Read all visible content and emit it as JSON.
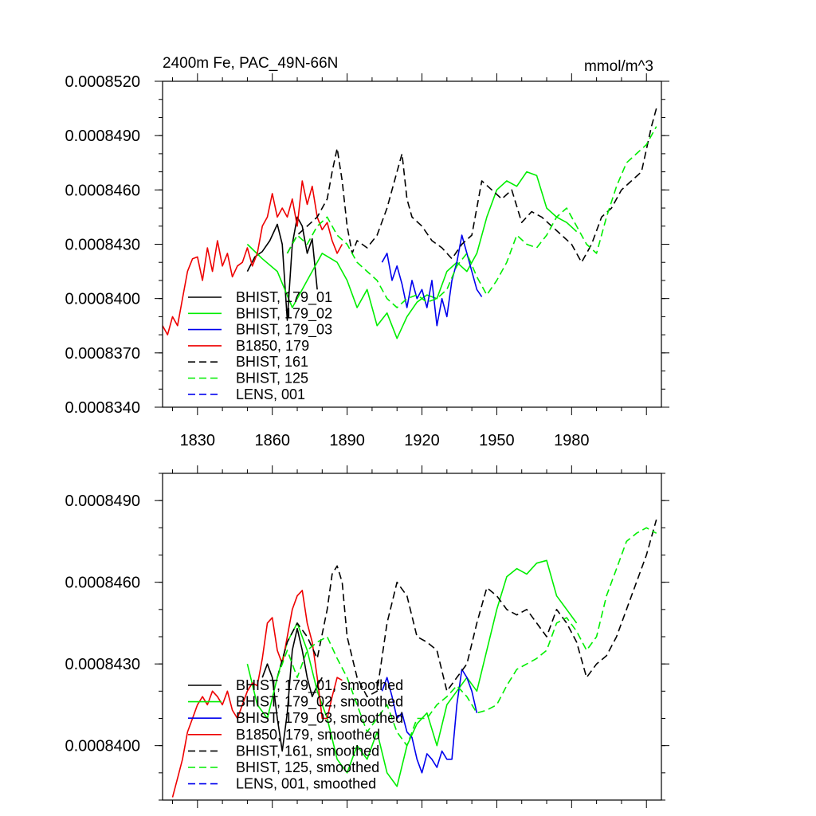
{
  "chart_data": [
    {
      "type": "line",
      "title": "2400m Fe, PAC_49N-66N",
      "units": "mmol/m^3",
      "xlabel": "",
      "ylabel": "",
      "xlim": [
        1816,
        2016
      ],
      "ylim": [
        0.000834,
        0.000852
      ],
      "xticks": [
        1830,
        1860,
        1890,
        1920,
        1950,
        1980
      ],
      "xtick_labels": [
        "1830",
        "1860",
        "1890",
        "1920",
        "1950",
        "1980"
      ],
      "yticks": [
        0.000834,
        0.000837,
        0.00084,
        0.000843,
        0.000846,
        0.000849,
        0.000852
      ],
      "ytick_labels": [
        "0.0008340",
        "0.0008370",
        "0.0008400",
        "0.0008430",
        "0.0008460",
        "0.0008490",
        "0.0008520"
      ],
      "legend_position": "lower-left",
      "series": [
        {
          "name": "BHIST, 179_01",
          "color": "#000000",
          "dash": "solid",
          "x": [
            1850,
            1853,
            1856,
            1859,
            1862,
            1864,
            1866,
            1868,
            1870,
            1872,
            1874,
            1876,
            1878
          ],
          "y": [
            0.0008415,
            0.0008423,
            0.0008426,
            0.0008432,
            0.0008441,
            0.000843,
            0.0008388,
            0.000843,
            0.0008445,
            0.000844,
            0.0008425,
            0.0008433,
            0.0008405
          ]
        },
        {
          "name": "BHIST, 179_02",
          "color": "#00ee00",
          "dash": "solid",
          "x": [
            1850,
            1856,
            1862,
            1868,
            1874,
            1880,
            1886,
            1890,
            1894,
            1898,
            1902,
            1906,
            1910,
            1914,
            1918,
            1922,
            1926,
            1930,
            1934,
            1938,
            1942,
            1946,
            1950,
            1954,
            1958,
            1962,
            1966,
            1970,
            1974,
            1978,
            1982
          ],
          "y": [
            0.000843,
            0.0008422,
            0.0008415,
            0.0008395,
            0.000841,
            0.0008425,
            0.000842,
            0.000841,
            0.0008395,
            0.0008405,
            0.0008385,
            0.0008392,
            0.0008378,
            0.000839,
            0.0008398,
            0.0008402,
            0.00084,
            0.0008415,
            0.000842,
            0.0008415,
            0.0008425,
            0.0008445,
            0.000846,
            0.0008465,
            0.0008462,
            0.000847,
            0.0008468,
            0.000845,
            0.0008445,
            0.0008442,
            0.0008437
          ]
        },
        {
          "name": "BHIST, 179_03",
          "color": "#0000ee",
          "dash": "solid",
          "x": [
            1904,
            1906,
            1908,
            1910,
            1912,
            1914,
            1916,
            1918,
            1920,
            1922,
            1924,
            1926,
            1928,
            1930,
            1932,
            1934,
            1936,
            1938,
            1940,
            1942,
            1944
          ],
          "y": [
            0.000842,
            0.0008425,
            0.000841,
            0.0008418,
            0.0008408,
            0.0008395,
            0.000841,
            0.00084,
            0.0008405,
            0.0008395,
            0.000841,
            0.0008385,
            0.00084,
            0.000839,
            0.000841,
            0.000842,
            0.0008435,
            0.0008425,
            0.0008415,
            0.0008405,
            0.0008401
          ]
        },
        {
          "name": "B1850, 179",
          "color": "#ee0000",
          "dash": "solid",
          "x": [
            1816,
            1818,
            1820,
            1822,
            1824,
            1826,
            1828,
            1830,
            1832,
            1834,
            1836,
            1838,
            1840,
            1842,
            1844,
            1846,
            1848,
            1850,
            1852,
            1854,
            1856,
            1858,
            1860,
            1862,
            1864,
            1866,
            1868,
            1870,
            1872,
            1874,
            1876,
            1878,
            1880,
            1882,
            1884,
            1886,
            1888
          ],
          "y": [
            0.0008385,
            0.000838,
            0.000839,
            0.0008385,
            0.00084,
            0.0008415,
            0.0008422,
            0.0008423,
            0.000841,
            0.0008428,
            0.0008415,
            0.0008432,
            0.0008418,
            0.0008425,
            0.0008412,
            0.0008418,
            0.000842,
            0.0008428,
            0.0008418,
            0.0008425,
            0.000844,
            0.0008445,
            0.0008458,
            0.0008445,
            0.000845,
            0.0008445,
            0.0008455,
            0.000844,
            0.0008465,
            0.0008452,
            0.0008462,
            0.0008445,
            0.0008438,
            0.0008442,
            0.0008432,
            0.0008425,
            0.000843
          ]
        },
        {
          "name": "BHIST, 161",
          "color": "#000000",
          "dash": "dashed",
          "x": [
            1866,
            1870,
            1874,
            1878,
            1882,
            1884,
            1886,
            1888,
            1890,
            1892,
            1894,
            1898,
            1902,
            1906,
            1910,
            1912,
            1914,
            1916,
            1920,
            1924,
            1928,
            1932,
            1936,
            1940,
            1944,
            1948,
            1952,
            1956,
            1960,
            1964,
            1968,
            1972,
            1976,
            1980,
            1984,
            1988,
            1992,
            1996,
            2000,
            2004,
            2008,
            2012,
            2014
          ],
          "y": [
            0.0008425,
            0.0008435,
            0.000844,
            0.0008445,
            0.0008455,
            0.000847,
            0.0008483,
            0.0008465,
            0.000844,
            0.0008425,
            0.0008432,
            0.0008428,
            0.0008435,
            0.000845,
            0.000847,
            0.000848,
            0.0008455,
            0.0008445,
            0.000844,
            0.0008432,
            0.0008428,
            0.0008422,
            0.000843,
            0.0008435,
            0.0008465,
            0.000846,
            0.0008455,
            0.000846,
            0.0008442,
            0.0008448,
            0.0008445,
            0.000844,
            0.0008435,
            0.000843,
            0.000842,
            0.000843,
            0.0008445,
            0.000845,
            0.000846,
            0.0008465,
            0.000847,
            0.0008495,
            0.0008505
          ]
        },
        {
          "name": "BHIST, 125",
          "color": "#00ee00",
          "dash": "dashed",
          "x": [
            1866,
            1870,
            1874,
            1878,
            1882,
            1886,
            1890,
            1894,
            1898,
            1902,
            1906,
            1910,
            1914,
            1918,
            1922,
            1926,
            1930,
            1934,
            1938,
            1942,
            1946,
            1950,
            1954,
            1958,
            1962,
            1966,
            1970,
            1974,
            1978,
            1982,
            1986,
            1990,
            1994,
            1998,
            2002,
            2006,
            2010,
            2014
          ],
          "y": [
            0.0008425,
            0.0008435,
            0.000843,
            0.000844,
            0.0008445,
            0.0008435,
            0.000843,
            0.000842,
            0.0008415,
            0.000841,
            0.00084,
            0.0008395,
            0.00084,
            0.0008402,
            0.0008398,
            0.00084,
            0.0008405,
            0.0008418,
            0.0008425,
            0.0008412,
            0.0008402,
            0.000841,
            0.000842,
            0.0008435,
            0.000843,
            0.0008428,
            0.0008435,
            0.0008445,
            0.000845,
            0.000844,
            0.000843,
            0.0008425,
            0.0008445,
            0.0008462,
            0.0008475,
            0.000848,
            0.0008485,
            0.0008495
          ]
        },
        {
          "name": "LENS, 001",
          "color": "#0000ee",
          "dash": "dashed",
          "x": [],
          "y": []
        }
      ]
    },
    {
      "type": "line",
      "title": "",
      "xlabel": "",
      "ylabel": "",
      "xlim": [
        1816,
        2016
      ],
      "ylim": [
        0.000838,
        0.00085
      ],
      "xticks": [
        1830,
        1860,
        1890,
        1920,
        1950,
        1980
      ],
      "yticks": [
        0.00084,
        0.000843,
        0.000846,
        0.000849
      ],
      "ytick_labels": [
        "0.0008400",
        "0.0008430",
        "0.0008460",
        "0.0008490"
      ],
      "legend_position": "lower-left",
      "series": [
        {
          "name": "BHIST, 179_01, smoothed",
          "color": "#000000",
          "dash": "solid",
          "x": [
            1856,
            1858,
            1860,
            1862,
            1864,
            1866,
            1868,
            1870,
            1872,
            1874,
            1876,
            1878,
            1880
          ],
          "y": [
            0.0008425,
            0.000843,
            0.0008425,
            0.000841,
            0.0008398,
            0.0008412,
            0.0008435,
            0.0008443,
            0.0008435,
            0.0008425,
            0.0008418,
            0.0008422,
            0.0008425
          ]
        },
        {
          "name": "BHIST, 179_02, smoothed",
          "color": "#00ee00",
          "dash": "solid",
          "x": [
            1850,
            1854,
            1858,
            1862,
            1866,
            1870,
            1874,
            1878,
            1882,
            1886,
            1890,
            1894,
            1898,
            1902,
            1906,
            1910,
            1914,
            1918,
            1922,
            1926,
            1930,
            1934,
            1938,
            1942,
            1946,
            1950,
            1954,
            1958,
            1962,
            1966,
            1970,
            1974,
            1978,
            1982
          ],
          "y": [
            0.000843,
            0.0008415,
            0.000841,
            0.0008425,
            0.0008438,
            0.0008445,
            0.0008435,
            0.000842,
            0.000841,
            0.0008395,
            0.000839,
            0.00084,
            0.0008395,
            0.0008405,
            0.000839,
            0.0008385,
            0.00084,
            0.0008408,
            0.0008412,
            0.00084,
            0.0008415,
            0.000842,
            0.0008425,
            0.000842,
            0.0008435,
            0.000845,
            0.0008462,
            0.0008465,
            0.0008463,
            0.0008467,
            0.0008468,
            0.0008455,
            0.000845,
            0.0008445
          ]
        },
        {
          "name": "BHIST, 179_03, smoothed",
          "color": "#0000ee",
          "dash": "solid",
          "x": [
            1904,
            1906,
            1908,
            1910,
            1912,
            1914,
            1916,
            1918,
            1920,
            1922,
            1924,
            1926,
            1928,
            1930,
            1932,
            1934,
            1936,
            1938,
            1940,
            1942
          ],
          "y": [
            0.000842,
            0.0008425,
            0.0008418,
            0.000841,
            0.0008412,
            0.0008405,
            0.0008403,
            0.0008395,
            0.000839,
            0.0008397,
            0.0008395,
            0.0008392,
            0.0008398,
            0.0008395,
            0.0008395,
            0.0008415,
            0.0008428,
            0.0008425,
            0.000842,
            0.0008412
          ]
        },
        {
          "name": "B1850, 179, smoothed",
          "color": "#ee0000",
          "dash": "solid",
          "x": [
            1820,
            1822,
            1824,
            1826,
            1828,
            1830,
            1832,
            1834,
            1836,
            1838,
            1840,
            1842,
            1844,
            1846,
            1848,
            1850,
            1852,
            1854,
            1856,
            1858,
            1860,
            1862,
            1864,
            1866,
            1868,
            1870,
            1872,
            1874,
            1876,
            1878,
            1880,
            1882,
            1884,
            1886,
            1888
          ],
          "y": [
            0.0008381,
            0.0008388,
            0.0008395,
            0.0008405,
            0.000841,
            0.0008415,
            0.0008418,
            0.0008415,
            0.000842,
            0.0008418,
            0.0008415,
            0.000842,
            0.0008413,
            0.000841,
            0.0008415,
            0.000842,
            0.0008423,
            0.0008422,
            0.0008432,
            0.0008445,
            0.0008447,
            0.0008435,
            0.000843,
            0.000844,
            0.000845,
            0.0008455,
            0.0008457,
            0.0008445,
            0.0008438,
            0.0008425,
            0.000841,
            0.000841,
            0.0008418,
            0.0008425,
            0.0008424
          ]
        },
        {
          "name": "BHIST, 161, smoothed",
          "color": "#000000",
          "dash": "dashed",
          "x": [
            1862,
            1866,
            1870,
            1874,
            1878,
            1882,
            1884,
            1886,
            1888,
            1890,
            1894,
            1898,
            1902,
            1906,
            1910,
            1914,
            1918,
            1922,
            1926,
            1930,
            1934,
            1938,
            1942,
            1946,
            1950,
            1954,
            1958,
            1962,
            1966,
            1970,
            1974,
            1978,
            1982,
            1986,
            1990,
            1994,
            1998,
            2002,
            2006,
            2010,
            2014
          ],
          "y": [
            0.0008425,
            0.0008438,
            0.0008445,
            0.000844,
            0.0008432,
            0.000845,
            0.0008463,
            0.0008466,
            0.000846,
            0.000844,
            0.0008425,
            0.0008418,
            0.000842,
            0.0008445,
            0.000846,
            0.0008455,
            0.000844,
            0.0008438,
            0.0008435,
            0.000842,
            0.0008425,
            0.000843,
            0.0008445,
            0.0008458,
            0.0008455,
            0.000845,
            0.0008448,
            0.000845,
            0.0008445,
            0.000844,
            0.000845,
            0.0008445,
            0.0008438,
            0.0008425,
            0.000843,
            0.0008433,
            0.000844,
            0.000845,
            0.000846,
            0.000847,
            0.0008483
          ]
        },
        {
          "name": "BHIST, 125, smoothed",
          "color": "#00ee00",
          "dash": "dashed",
          "x": [
            1862,
            1866,
            1870,
            1874,
            1878,
            1882,
            1886,
            1890,
            1894,
            1898,
            1902,
            1906,
            1910,
            1914,
            1918,
            1922,
            1926,
            1930,
            1934,
            1938,
            1942,
            1946,
            1950,
            1954,
            1958,
            1962,
            1966,
            1970,
            1974,
            1978,
            1982,
            1986,
            1990,
            1994,
            1998,
            2002,
            2006,
            2010,
            2014
          ],
          "y": [
            0.0008425,
            0.0008435,
            0.0008425,
            0.0008435,
            0.0008438,
            0.000844,
            0.0008432,
            0.0008425,
            0.0008415,
            0.0008405,
            0.000841,
            0.0008415,
            0.0008405,
            0.00084,
            0.000841,
            0.000841,
            0.0008415,
            0.0008418,
            0.0008422,
            0.0008418,
            0.0008412,
            0.0008413,
            0.0008415,
            0.0008422,
            0.0008428,
            0.000843,
            0.0008432,
            0.0008435,
            0.0008445,
            0.0008447,
            0.0008442,
            0.0008435,
            0.000844,
            0.0008455,
            0.0008465,
            0.0008475,
            0.0008478,
            0.000848,
            0.0008478
          ]
        },
        {
          "name": "LENS, 001, smoothed",
          "color": "#0000ee",
          "dash": "dashed",
          "x": [],
          "y": []
        }
      ]
    }
  ]
}
